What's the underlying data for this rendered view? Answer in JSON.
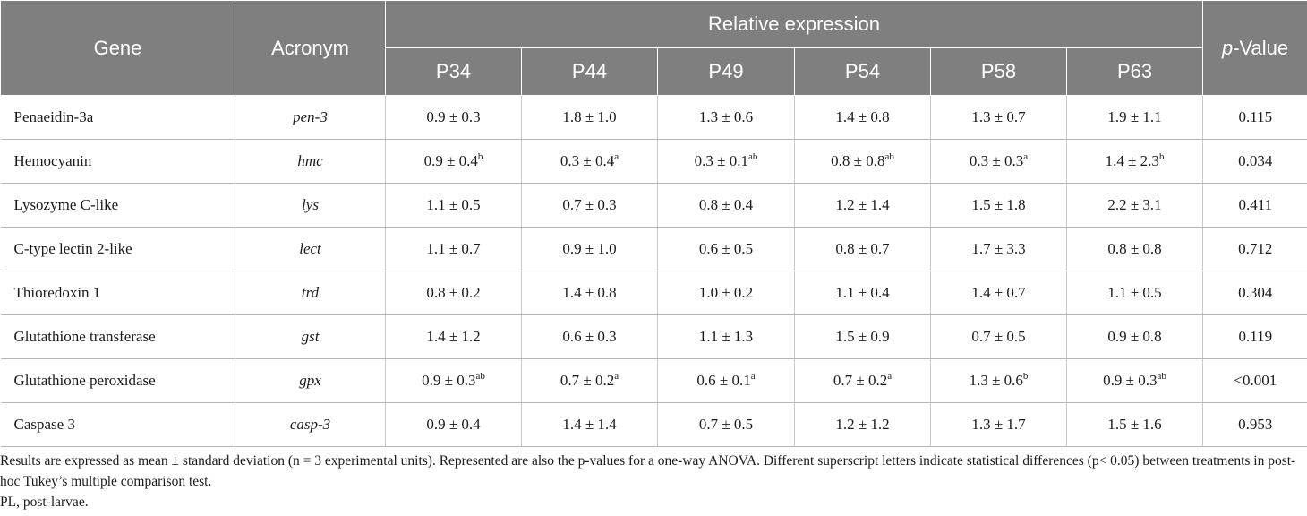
{
  "table": {
    "headers": {
      "gene": "Gene",
      "acronym": "Acronym",
      "group": "Relative expression",
      "pvalue_italic": "p",
      "pvalue_rest": "-Value",
      "columns": [
        "P34",
        "P44",
        "P49",
        "P54",
        "P58",
        "P63"
      ]
    },
    "rows": [
      {
        "gene": "Penaeidin-3a",
        "acronym": "pen-3",
        "cells": [
          {
            "v": "0.9 ± 0.3",
            "s": ""
          },
          {
            "v": "1.8 ± 1.0",
            "s": ""
          },
          {
            "v": "1.3 ± 0.6",
            "s": ""
          },
          {
            "v": "1.4 ± 0.8",
            "s": ""
          },
          {
            "v": "1.3 ± 0.7",
            "s": ""
          },
          {
            "v": "1.9 ± 1.1",
            "s": ""
          }
        ],
        "p": "0.115"
      },
      {
        "gene": "Hemocyanin",
        "acronym": "hmc",
        "cells": [
          {
            "v": "0.9 ± 0.4",
            "s": "b"
          },
          {
            "v": "0.3 ± 0.4",
            "s": "a"
          },
          {
            "v": "0.3 ± 0.1",
            "s": "ab"
          },
          {
            "v": "0.8 ± 0.8",
            "s": "ab"
          },
          {
            "v": "0.3 ± 0.3",
            "s": "a"
          },
          {
            "v": "1.4 ± 2.3",
            "s": "b"
          }
        ],
        "p": "0.034"
      },
      {
        "gene": "Lysozyme C-like",
        "acronym": "lys",
        "cells": [
          {
            "v": "1.1 ± 0.5",
            "s": ""
          },
          {
            "v": "0.7 ± 0.3",
            "s": ""
          },
          {
            "v": "0.8 ± 0.4",
            "s": ""
          },
          {
            "v": "1.2 ± 1.4",
            "s": ""
          },
          {
            "v": "1.5 ± 1.8",
            "s": ""
          },
          {
            "v": "2.2 ± 3.1",
            "s": ""
          }
        ],
        "p": "0.411"
      },
      {
        "gene": "C-type lectin 2-like",
        "acronym": "lect",
        "cells": [
          {
            "v": "1.1 ± 0.7",
            "s": ""
          },
          {
            "v": "0.9 ± 1.0",
            "s": ""
          },
          {
            "v": "0.6 ± 0.5",
            "s": ""
          },
          {
            "v": "0.8 ± 0.7",
            "s": ""
          },
          {
            "v": "1.7 ± 3.3",
            "s": ""
          },
          {
            "v": "0.8 ± 0.8",
            "s": ""
          }
        ],
        "p": "0.712"
      },
      {
        "gene": "Thioredoxin 1",
        "acronym": "trd",
        "cells": [
          {
            "v": "0.8 ± 0.2",
            "s": ""
          },
          {
            "v": "1.4 ± 0.8",
            "s": ""
          },
          {
            "v": "1.0 ± 0.2",
            "s": ""
          },
          {
            "v": "1.1 ± 0.4",
            "s": ""
          },
          {
            "v": "1.4 ± 0.7",
            "s": ""
          },
          {
            "v": "1.1 ± 0.5",
            "s": ""
          }
        ],
        "p": "0.304"
      },
      {
        "gene": "Glutathione transferase",
        "acronym": "gst",
        "cells": [
          {
            "v": "1.4 ± 1.2",
            "s": ""
          },
          {
            "v": "0.6 ± 0.3",
            "s": ""
          },
          {
            "v": "1.1 ± 1.3",
            "s": ""
          },
          {
            "v": "1.5 ± 0.9",
            "s": ""
          },
          {
            "v": "0.7 ± 0.5",
            "s": ""
          },
          {
            "v": "0.9 ± 0.8",
            "s": ""
          }
        ],
        "p": "0.119"
      },
      {
        "gene": "Glutathione peroxidase",
        "acronym": "gpx",
        "cells": [
          {
            "v": "0.9 ± 0.3",
            "s": "ab"
          },
          {
            "v": "0.7 ± 0.2",
            "s": "a"
          },
          {
            "v": "0.6 ± 0.1",
            "s": "a"
          },
          {
            "v": "0.7 ± 0.2",
            "s": "a"
          },
          {
            "v": "1.3 ± 0.6",
            "s": "b"
          },
          {
            "v": "0.9 ± 0.3",
            "s": "ab"
          }
        ],
        "p": "<0.001"
      },
      {
        "gene": "Caspase 3",
        "acronym": "casp-3",
        "cells": [
          {
            "v": "0.9 ± 0.4",
            "s": ""
          },
          {
            "v": "1.4 ± 1.4",
            "s": ""
          },
          {
            "v": "0.7 ± 0.5",
            "s": ""
          },
          {
            "v": "1.2 ± 1.2",
            "s": ""
          },
          {
            "v": "1.3 ± 1.7",
            "s": ""
          },
          {
            "v": "1.5 ± 1.6",
            "s": ""
          }
        ],
        "p": "0.953"
      }
    ]
  },
  "footnotes": {
    "note1": "Results are expressed as mean ± standard deviation (n = 3 experimental units). Represented are also the p-values for a one-way ANOVA. Different superscript letters indicate statistical differences (p< 0.05) between treatments in post-hoc Tukey’s multiple comparison test.",
    "note2": "PL, post-larvae."
  }
}
